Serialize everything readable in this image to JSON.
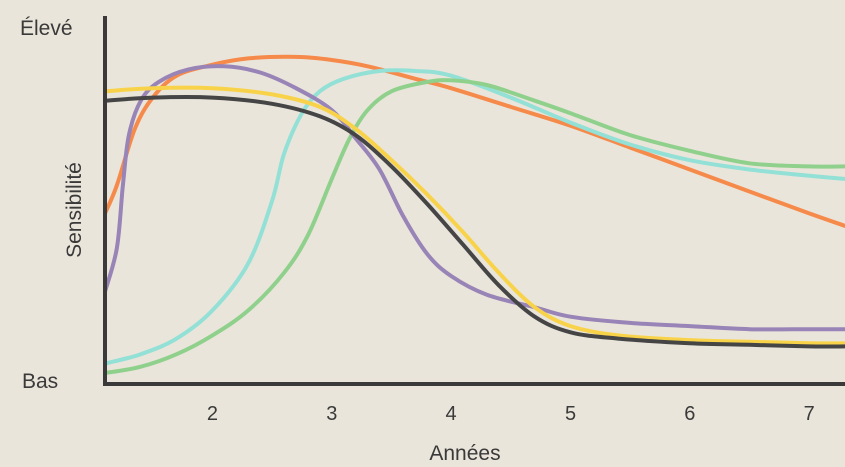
{
  "chart_data": {
    "type": "line",
    "xlabel": "Années",
    "ylabel": "Sensibilité",
    "y_top_label": "Élevé",
    "y_bottom_label": "Bas",
    "xlim": [
      1.1,
      7.3
    ],
    "ylim": [
      0,
      100
    ],
    "x_ticks": [
      2,
      3,
      4,
      5,
      6,
      7
    ],
    "grid": false,
    "legend": "none",
    "series": [
      {
        "color": "#f58a4b",
        "points": [
          [
            1.1,
            51
          ],
          [
            1.2,
            60
          ],
          [
            1.35,
            78
          ],
          [
            1.5,
            88
          ],
          [
            1.7,
            95
          ],
          [
            2.0,
            98.5
          ],
          [
            2.3,
            100.5
          ],
          [
            2.7,
            101
          ],
          [
            3.0,
            100
          ],
          [
            3.3,
            98
          ],
          [
            3.7,
            94
          ],
          [
            4.0,
            91
          ],
          [
            4.5,
            85
          ],
          [
            5.0,
            79
          ],
          [
            5.5,
            72
          ],
          [
            6.0,
            65
          ],
          [
            6.5,
            58
          ],
          [
            7.0,
            51
          ],
          [
            7.3,
            47
          ]
        ]
      },
      {
        "color": "#93e0d6",
        "points": [
          [
            1.1,
            3
          ],
          [
            1.4,
            6
          ],
          [
            1.7,
            11
          ],
          [
            2.0,
            20
          ],
          [
            2.3,
            35
          ],
          [
            2.5,
            55
          ],
          [
            2.6,
            70
          ],
          [
            2.75,
            83
          ],
          [
            2.9,
            90
          ],
          [
            3.1,
            94
          ],
          [
            3.4,
            96.5
          ],
          [
            3.7,
            96.5
          ],
          [
            4.0,
            95
          ],
          [
            4.5,
            88
          ],
          [
            5.0,
            80
          ],
          [
            5.5,
            73
          ],
          [
            6.0,
            68
          ],
          [
            6.5,
            65
          ],
          [
            7.0,
            63
          ],
          [
            7.3,
            62
          ]
        ]
      },
      {
        "color": "#8fd18c",
        "points": [
          [
            1.1,
            0
          ],
          [
            1.4,
            2
          ],
          [
            1.7,
            6
          ],
          [
            2.0,
            12
          ],
          [
            2.3,
            20
          ],
          [
            2.6,
            32
          ],
          [
            2.8,
            44
          ],
          [
            3.0,
            62
          ],
          [
            3.15,
            75
          ],
          [
            3.3,
            84
          ],
          [
            3.5,
            90
          ],
          [
            3.8,
            93
          ],
          [
            4.0,
            93.5
          ],
          [
            4.3,
            92
          ],
          [
            4.7,
            87
          ],
          [
            5.0,
            83
          ],
          [
            5.5,
            76
          ],
          [
            6.0,
            71
          ],
          [
            6.5,
            67
          ],
          [
            7.0,
            66
          ],
          [
            7.3,
            66
          ]
        ]
      },
      {
        "color": "#9884b6",
        "points": [
          [
            1.1,
            26
          ],
          [
            1.2,
            40
          ],
          [
            1.25,
            60
          ],
          [
            1.3,
            76
          ],
          [
            1.4,
            87
          ],
          [
            1.55,
            93
          ],
          [
            1.8,
            97
          ],
          [
            2.1,
            98
          ],
          [
            2.4,
            96
          ],
          [
            2.7,
            91
          ],
          [
            3.0,
            84
          ],
          [
            3.2,
            75
          ],
          [
            3.4,
            65
          ],
          [
            3.6,
            50
          ],
          [
            3.8,
            38
          ],
          [
            4.0,
            31
          ],
          [
            4.3,
            25
          ],
          [
            4.7,
            21
          ],
          [
            5.0,
            18
          ],
          [
            5.5,
            16
          ],
          [
            6.0,
            15
          ],
          [
            6.5,
            14
          ],
          [
            7.0,
            14
          ],
          [
            7.3,
            14
          ]
        ]
      },
      {
        "color": "#f8d34a",
        "points": [
          [
            1.1,
            90
          ],
          [
            1.5,
            91
          ],
          [
            2.0,
            91
          ],
          [
            2.5,
            89
          ],
          [
            2.9,
            85
          ],
          [
            3.2,
            78
          ],
          [
            3.5,
            68
          ],
          [
            3.8,
            57
          ],
          [
            4.1,
            45
          ],
          [
            4.4,
            32
          ],
          [
            4.7,
            21
          ],
          [
            5.0,
            15
          ],
          [
            5.4,
            12
          ],
          [
            6.0,
            10.5
          ],
          [
            6.5,
            10
          ],
          [
            7.0,
            9.5
          ],
          [
            7.3,
            9.5
          ]
        ]
      },
      {
        "color": "#454545",
        "points": [
          [
            1.1,
            87
          ],
          [
            1.5,
            88
          ],
          [
            2.0,
            88
          ],
          [
            2.5,
            86
          ],
          [
            2.9,
            82
          ],
          [
            3.2,
            76
          ],
          [
            3.5,
            66
          ],
          [
            3.8,
            54
          ],
          [
            4.1,
            41
          ],
          [
            4.4,
            28
          ],
          [
            4.7,
            18
          ],
          [
            5.0,
            13
          ],
          [
            5.4,
            11
          ],
          [
            6.0,
            9.5
          ],
          [
            6.5,
            9
          ],
          [
            7.0,
            8.5
          ],
          [
            7.3,
            8.5
          ]
        ]
      }
    ]
  }
}
